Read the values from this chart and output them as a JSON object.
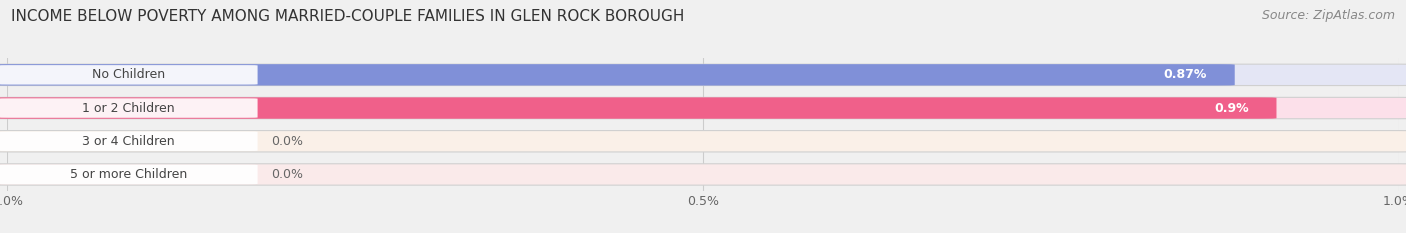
{
  "title": "INCOME BELOW POVERTY AMONG MARRIED-COUPLE FAMILIES IN GLEN ROCK BOROUGH",
  "source": "Source: ZipAtlas.com",
  "categories": [
    "No Children",
    "1 or 2 Children",
    "3 or 4 Children",
    "5 or more Children"
  ],
  "values": [
    0.87,
    0.9,
    0.0,
    0.0
  ],
  "bar_colors": [
    "#8090d8",
    "#f0608a",
    "#f5c89a",
    "#f5a8a8"
  ],
  "bar_bg_colors": [
    "#e4e6f5",
    "#fce0ea",
    "#faf0e8",
    "#faeaea"
  ],
  "label_values": [
    "0.87%",
    "0.9%",
    "0.0%",
    "0.0%"
  ],
  "x_ticks": [
    0.0,
    0.5,
    1.0
  ],
  "x_tick_labels": [
    "0.0%",
    "0.5%",
    "1.0%"
  ],
  "xlim_max": 1.0,
  "title_fontsize": 11,
  "source_fontsize": 9,
  "bar_label_fontsize": 9,
  "category_fontsize": 9,
  "tick_fontsize": 9,
  "background_color": "#f0f0f0",
  "plot_bg_color": "#f0f0f0"
}
